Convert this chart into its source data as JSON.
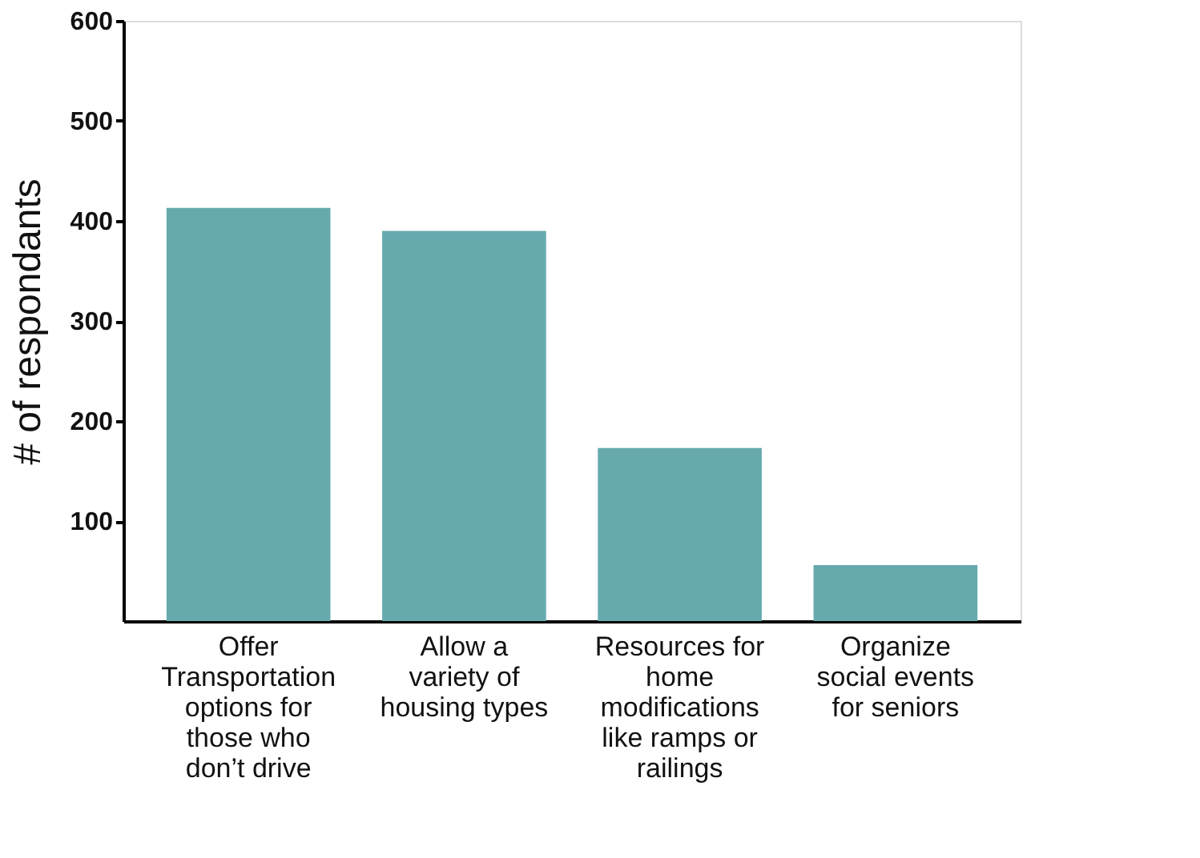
{
  "chart_data": {
    "type": "bar",
    "ylabel": "# of respondants",
    "categories": [
      "Offer Transportation options for those who don’t drive",
      "Allow a variety of housing types",
      "Resources for home modifications like ramps or railings",
      "Organize social events for seniors"
    ],
    "values": [
      413,
      390,
      173,
      56
    ],
    "color": "#66aaae",
    "ylim": [
      0,
      600
    ],
    "yticks": [
      100,
      200,
      300,
      400,
      500,
      600
    ],
    "grid": false
  }
}
